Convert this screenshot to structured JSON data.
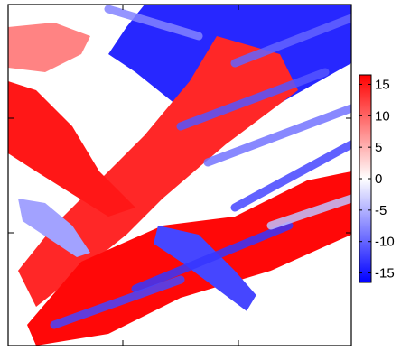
{
  "chart_data": {
    "type": "heatmap",
    "title": "",
    "xlabel": "",
    "ylabel": "",
    "colorscale": [
      "#0000ff",
      "#ffffff",
      "#ff0000"
    ],
    "colorbar": {
      "range": [
        -16.5,
        16.5
      ],
      "ticks": [
        15,
        10,
        5,
        0,
        -5,
        -10,
        -15
      ],
      "tick_labels": [
        "15",
        "10",
        "5",
        "0",
        "-5",
        "-10",
        "-15"
      ]
    },
    "x_tick_labels": [],
    "y_tick_labels": [],
    "grid": false,
    "description_of_field": "2D map of diagonal streak-like domains, mostly blue (negative) with red (positive) patches on the left and lower-middle, white background areas",
    "regions": [
      {
        "value": -14,
        "label": "large central blue streak"
      },
      {
        "value": 14,
        "label": "upper-left red band"
      },
      {
        "value": 16,
        "label": "lower-left red band"
      },
      {
        "value": 15,
        "label": "lower-middle red band"
      },
      {
        "value": -6,
        "label": "light blue streaks upper area"
      },
      {
        "value": -12,
        "label": "lower-left blue streaks"
      },
      {
        "value": 8,
        "label": "top light red patches"
      },
      {
        "value": 0,
        "label": "white background"
      }
    ]
  }
}
